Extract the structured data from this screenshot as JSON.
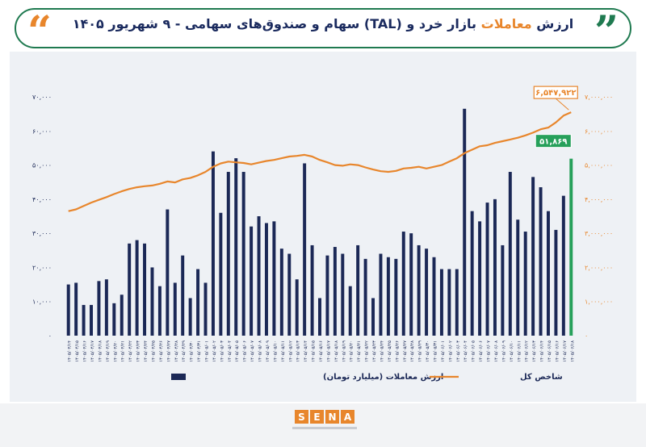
{
  "header": {
    "title_part1": "ارزش",
    "title_part2": "معاملات",
    "title_part3": "بازار خرد و (TAL) سهام و صندوق‌های سهامی - ۹ شهریور ۱۴۰۵"
  },
  "colors": {
    "bars": "#1b2856",
    "line": "#e8862c",
    "last_bar": "#26a05a",
    "accent_green": "#1f7a50"
  },
  "chart_data": {
    "type": "bar+line",
    "series": [
      {
        "name": "ارزش معاملات (میلیارد تومان)",
        "axis": "left",
        "values": [
          15000,
          15500,
          9000,
          9000,
          16000,
          16500,
          9500,
          12000,
          27000,
          28000,
          27000,
          20000,
          14500,
          37000,
          15500,
          23500,
          11000,
          19500,
          15500,
          54000,
          36000,
          48000,
          52000,
          48000,
          32000,
          35000,
          33000,
          33500,
          25500,
          24000,
          16500,
          50500,
          26500,
          11000,
          23500,
          26000,
          24000,
          14500,
          26500,
          22500,
          11000,
          24000,
          23000,
          22500,
          30500,
          30000,
          26500,
          25500,
          23000,
          19500,
          19500,
          19500,
          66500,
          36500,
          33500,
          39000,
          40000,
          26500,
          48000,
          34000,
          30500,
          46500,
          43500,
          36500,
          31000,
          41000,
          51869
        ]
      },
      {
        "name": "شاخص کل",
        "axis": "right",
        "values": [
          3650000,
          3700000,
          3800000,
          3900000,
          3980000,
          4060000,
          4150000,
          4230000,
          4300000,
          4350000,
          4380000,
          4400000,
          4450000,
          4520000,
          4490000,
          4580000,
          4620000,
          4700000,
          4800000,
          4950000,
          5050000,
          5100000,
          5080000,
          5060000,
          5020000,
          5070000,
          5120000,
          5150000,
          5200000,
          5250000,
          5270000,
          5300000,
          5250000,
          5150000,
          5080000,
          5000000,
          4980000,
          5020000,
          5000000,
          4930000,
          4870000,
          4820000,
          4800000,
          4830000,
          4900000,
          4920000,
          4950000,
          4900000,
          4950000,
          5000000,
          5100000,
          5200000,
          5350000,
          5450000,
          5550000,
          5580000,
          5650000,
          5700000,
          5750000,
          5800000,
          5870000,
          5950000,
          6050000,
          6100000,
          6250000,
          6450000,
          6547922
        ]
      }
    ],
    "x": [
      "۱۴۰۵/۰۴/۱۴",
      "۱۴۰۵/۰۴/۱۵",
      "۱۴۰۵/۰۴/۱۶",
      "۱۴۰۵/۰۴/۱۷",
      "۱۴۰۵/۰۴/۱۸",
      "۱۴۰۵/۰۴/۱۹",
      "۱۴۰۵/۰۴/۲۰",
      "۱۴۰۵/۰۴/۲۱",
      "۱۴۰۵/۰۴/۲۲",
      "۱۴۰۵/۰۴/۲۳",
      "۱۴۰۵/۰۴/۲۴",
      "۱۴۰۵/۰۴/۲۵",
      "۱۴۰۵/۰۴/۲۶",
      "۱۴۰۵/۰۴/۲۷",
      "۱۴۰۵/۰۴/۲۸",
      "۱۴۰۵/۰۴/۲۹",
      "۱۴۰۵/۰۴/۳۰",
      "۱۴۰۵/۰۴/۳۱",
      "۱۴۰۵/۰۵/۰۱",
      "۱۴۰۵/۰۵/۰۲",
      "۱۴۰۵/۰۵/۰۳",
      "۱۴۰۵/۰۵/۰۴",
      "۱۴۰۵/۰۵/۰۵",
      "۱۴۰۵/۰۵/۰۶",
      "۱۴۰۵/۰۵/۰۷",
      "۱۴۰۵/۰۵/۰۸",
      "۱۴۰۵/۰۵/۰۹",
      "۱۴۰۵/۰۵/۱۰",
      "۱۴۰۵/۰۵/۱۱",
      "۱۴۰۵/۰۵/۱۲",
      "۱۴۰۵/۰۵/۱۳",
      "۱۴۰۵/۰۵/۱۴",
      "۱۴۰۵/۰۵/۱۵",
      "۱۴۰۵/۰۵/۱۶",
      "۱۴۰۵/۰۵/۱۷",
      "۱۴۰۵/۰۵/۱۸",
      "۱۴۰۵/۰۵/۱۹",
      "۱۴۰۵/۰۵/۲۰",
      "۱۴۰۵/۰۵/۲۱",
      "۱۴۰۵/۰۵/۲۲",
      "۱۴۰۵/۰۵/۲۳",
      "۱۴۰۵/۰۵/۲۴",
      "۱۴۰۵/۰۵/۲۵",
      "۱۴۰۵/۰۵/۲۶",
      "۱۴۰۵/۰۵/۲۷",
      "۱۴۰۵/۰۵/۲۸",
      "۱۴۰۵/۰۵/۲۹",
      "۱۴۰۵/۰۵/۳۰",
      "۱۴۰۵/۰۵/۳۱",
      "۱۴۰۵/۰۶/۰۱",
      "۱۴۰۵/۰۶/۰۲",
      "۱۴۰۵/۰۶/۰۳",
      "۱۴۰۵/۰۶/۰۴",
      "۱۴۰۵/۰۶/۰۵",
      "۱۴۰۵/۰۶/۰۶",
      "۱۴۰۵/۰۶/۰۷",
      "۱۴۰۵/۰۶/۰۸",
      "۱۴۰۵/۰۶/۰۹",
      "۱۴۰۵/۰۶/۱۰",
      "۱۴۰۵/۰۶/۱۱",
      "۱۴۰۵/۰۶/۱۲",
      "۱۴۰۵/۰۶/۱۳",
      "۱۴۰۵/۰۶/۱۴",
      "۱۴۰۵/۰۶/۱۵",
      "۱۴۰۵/۰۶/۱۶",
      "۱۴۰۵/۰۶/۱۷",
      "۱۴۰۵/۰۶/۱۸"
    ],
    "left_axis": {
      "ticks": [
        "۰",
        "۱۰,۰۰۰",
        "۲۰,۰۰۰",
        "۳۰,۰۰۰",
        "۴۰,۰۰۰",
        "۵۰,۰۰۰",
        "۶۰,۰۰۰",
        "۷۰,۰۰۰"
      ],
      "ylim": [
        0,
        70000
      ]
    },
    "right_axis": {
      "ticks": [
        "۰",
        "۱,۰۰۰,۰۰۰",
        "۲,۰۰۰,۰۰۰",
        "۳,۰۰۰,۰۰۰",
        "۴,۰۰۰,۰۰۰",
        "۵,۰۰۰,۰۰۰",
        "۶,۰۰۰,۰۰۰",
        "۷,۰۰۰,۰۰۰"
      ],
      "ylim": [
        0,
        7000000
      ]
    },
    "annotations": {
      "index_last": "۶,۵۴۷,۹۲۲",
      "value_last": "۵۱,۸۶۹"
    },
    "legend": {
      "bars_label": "ارزش معاملات (میلیارد تومان)",
      "line_label": "شاخص کل",
      "position": "bottom"
    },
    "grid": false
  },
  "logo": {
    "letters": [
      "S",
      "E",
      "N",
      "A"
    ]
  }
}
